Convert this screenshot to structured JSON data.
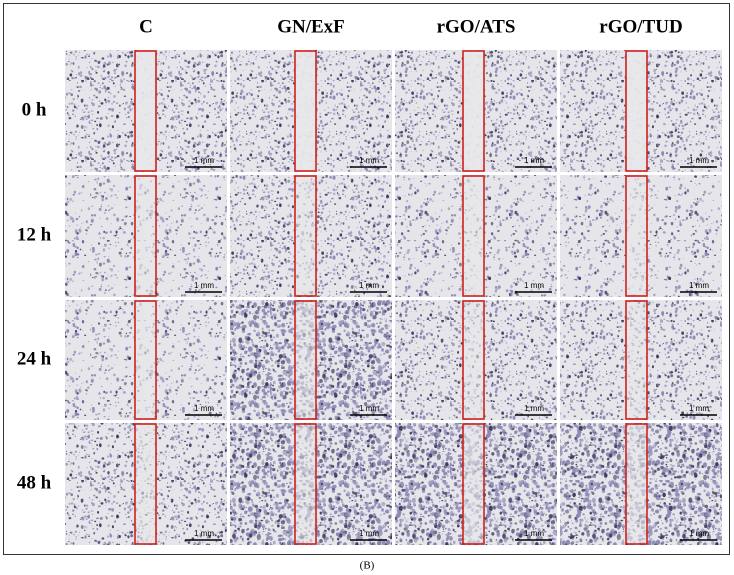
{
  "columns": [
    "C",
    "GN/ExF",
    "rGO/ATS",
    "rGO/TUD"
  ],
  "rows": [
    "0 h",
    "12 h",
    "24 h",
    "48 h"
  ],
  "scale_bar": "1 mm",
  "caption": "(B)"
}
